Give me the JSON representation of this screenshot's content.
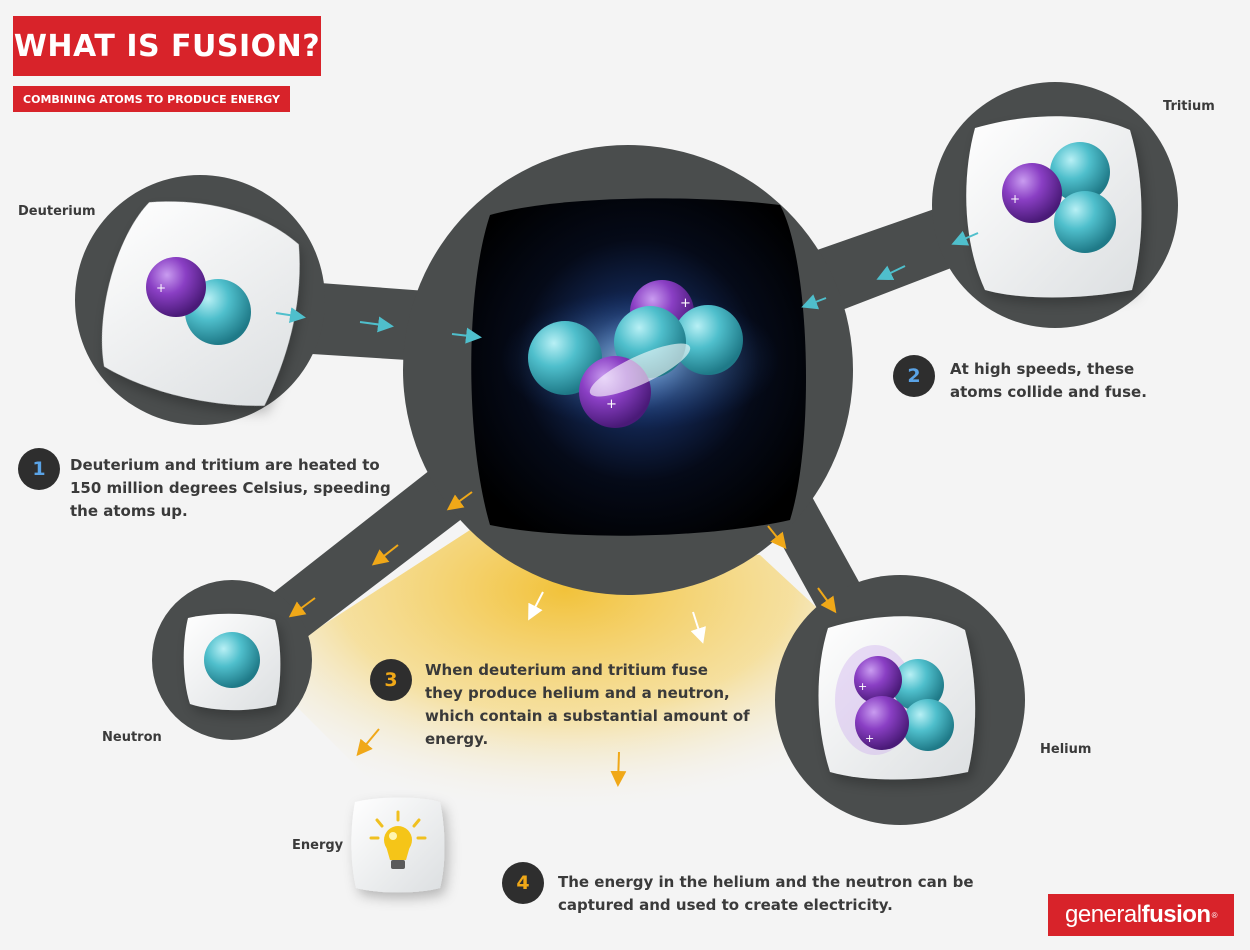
{
  "header": {
    "title": "WHAT IS FUSION?",
    "subtitle": "COMBINING ATOMS TO PRODUCE ENERGY"
  },
  "labels": {
    "deuterium": "Deuterium",
    "tritium": "Tritium",
    "neutron": "Neutron",
    "helium": "Helium",
    "energy": "Energy"
  },
  "steps": [
    {
      "number": "1",
      "lines": [
        "Deuterium and tritium are heated to",
        "150 million degrees Celsius, speeding",
        "the atoms up."
      ]
    },
    {
      "number": "2",
      "lines": [
        "At high speeds, these",
        "atoms collide and fuse."
      ]
    },
    {
      "number": "3",
      "lines": [
        "When deuterium and tritium fuse",
        "they produce helium and a neutron,",
        "which contain a substantial amount of",
        "energy."
      ]
    },
    {
      "number": "4",
      "lines": [
        "The energy in the helium and the neutron can be",
        "captured and used to create electricity."
      ]
    }
  ],
  "brand": {
    "part1": "general",
    "part2": "fusion",
    "mark": "®"
  },
  "colors": {
    "accent_red": "#d8232a",
    "proton_purple": "#8a3fc4",
    "neutron_cyan": "#4fbfcc",
    "energy_yellow": "#f4c430",
    "step_blue": "#5aa3e6",
    "step_orange": "#f0a818",
    "dark_disk": "#4a4d4d"
  },
  "icons": [
    "plus-sign",
    "arrow",
    "lightbulb-icon"
  ]
}
